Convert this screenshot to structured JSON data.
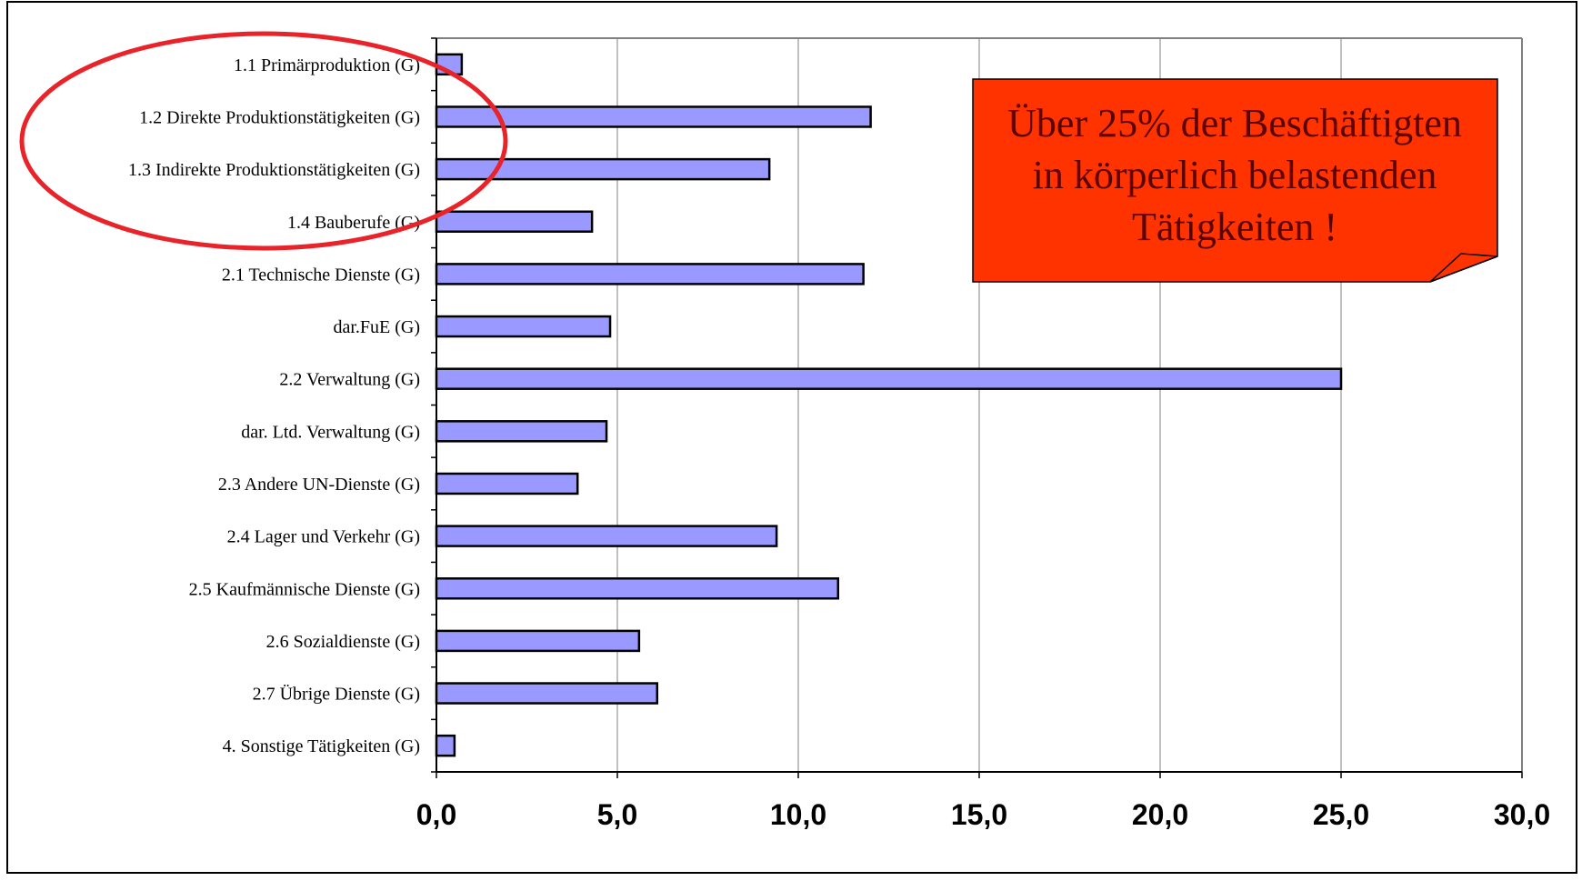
{
  "colors": {
    "bar_fill": "#9999ff",
    "bar_stroke": "#000000",
    "grid": "#808080",
    "frame": "#000000",
    "callout_fill": "#ff3300",
    "callout_text": "#5a0000",
    "highlight_ellipse": "#e8232a"
  },
  "callout": {
    "lines": [
      "Über 25% der Beschäftigten",
      "in körperlich belastenden",
      "Tätigkeiten !"
    ]
  },
  "chart_data": {
    "type": "bar",
    "orientation": "horizontal",
    "title": "",
    "xlabel": "",
    "ylabel": "",
    "xlim": [
      0,
      30
    ],
    "x_ticks": [
      "0,0",
      "5,0",
      "10,0",
      "15,0",
      "20,0",
      "25,0",
      "30,0"
    ],
    "x_tick_values": [
      0,
      5,
      10,
      15,
      20,
      25,
      30
    ],
    "grid": true,
    "legend": "none",
    "categories": [
      "1.1 Primärproduktion (G)",
      "1.2 Direkte Produktionstätigkeiten (G)",
      "1.3 Indirekte Produktionstätigkeiten (G)",
      "1.4 Bauberufe (G)",
      "2.1 Technische Dienste (G)",
      "dar.FuE (G)",
      "2.2 Verwaltung (G)",
      "dar. Ltd. Verwaltung (G)",
      "2.3 Andere UN-Dienste (G)",
      "2.4 Lager und Verkehr (G)",
      "2.5 Kaufmännische Dienste (G)",
      "2.6 Sozialdienste (G)",
      "2.7 Übrige Dienste (G)",
      "4. Sonstige Tätigkeiten (G)"
    ],
    "values": [
      0.7,
      12.0,
      9.2,
      4.3,
      11.8,
      4.8,
      25.0,
      4.7,
      3.9,
      9.4,
      11.1,
      5.6,
      6.1,
      0.5
    ],
    "highlighted_categories": [
      0,
      1,
      2,
      3
    ]
  }
}
